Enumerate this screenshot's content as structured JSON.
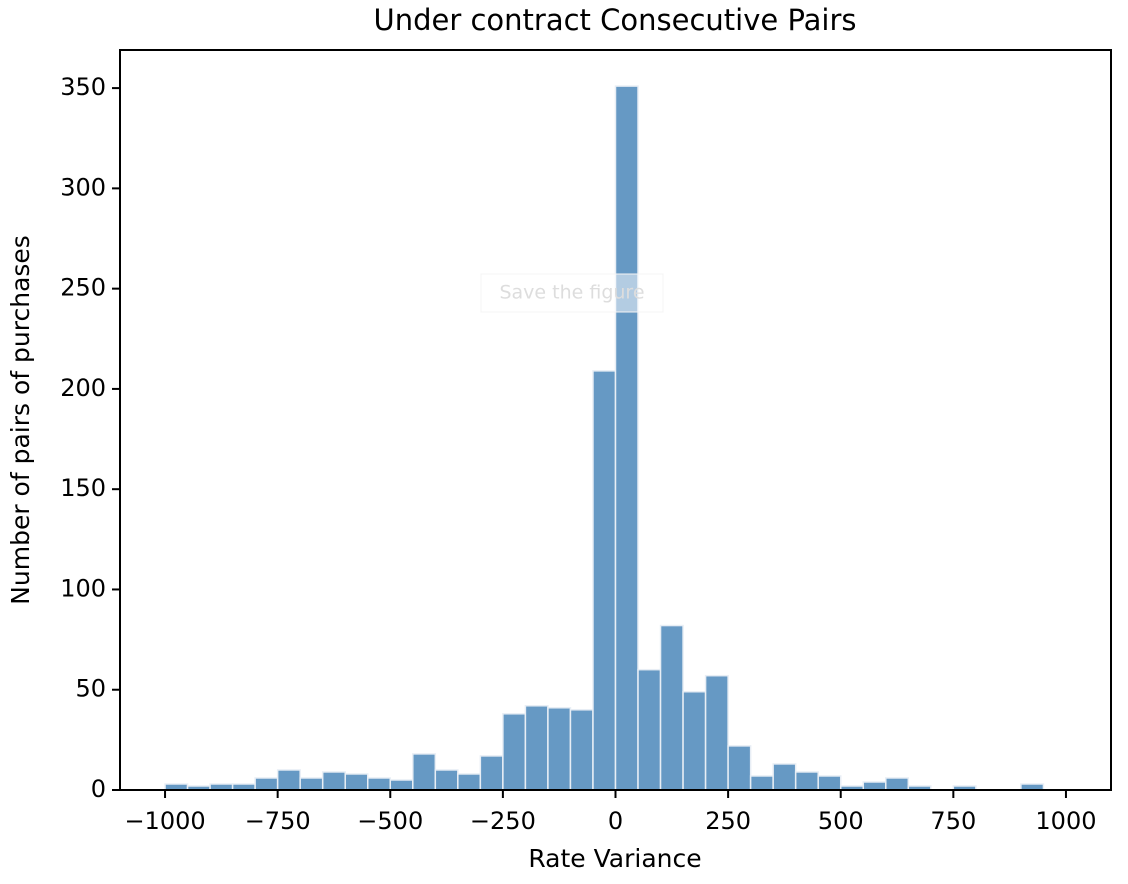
{
  "chart_data": {
    "type": "histogram",
    "title": "Under contract Consecutive Pairs",
    "x_label": "Rate Variance",
    "y_label": "Number of pairs of purchases",
    "tooltip": "Save the figure",
    "color": "#6699c4",
    "bins": [
      -1000,
      -950,
      -900,
      -850,
      -800,
      -750,
      -700,
      -650,
      -600,
      -550,
      -500,
      -450,
      -400,
      -350,
      -300,
      -250,
      -200,
      -150,
      -100,
      -50,
      0,
      50,
      100,
      150,
      200,
      250,
      300,
      350,
      400,
      450,
      500,
      550,
      600,
      650,
      700,
      750,
      800,
      850,
      900,
      950,
      1000
    ],
    "values": [
      3,
      2,
      3,
      3,
      6,
      10,
      6,
      9,
      8,
      6,
      5,
      18,
      10,
      8,
      17,
      38,
      42,
      41,
      40,
      209,
      351,
      60,
      82,
      49,
      57,
      22,
      7,
      13,
      9,
      7,
      2,
      4,
      6,
      2,
      0,
      2,
      0,
      0,
      3,
      0
    ],
    "xlim": [
      -1100,
      1100
    ],
    "ylim": [
      0,
      369
    ],
    "xticks": [
      {
        "value": -1000,
        "label": "−1000"
      },
      {
        "value": -750,
        "label": "−750"
      },
      {
        "value": -500,
        "label": "−500"
      },
      {
        "value": -250,
        "label": "−250"
      },
      0,
      250,
      500,
      750,
      1000
    ],
    "yticks": [
      0,
      50,
      100,
      150,
      200,
      250,
      300,
      350
    ]
  }
}
